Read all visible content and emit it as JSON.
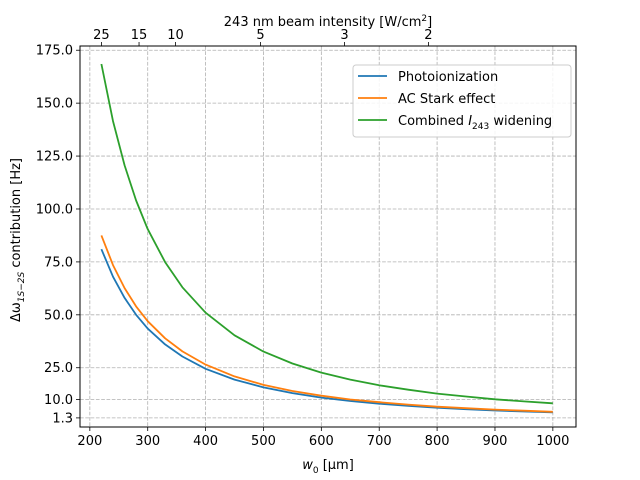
{
  "chart_data": {
    "type": "line",
    "x_label_prefix": "w",
    "x_label_sub": "0",
    "x_label_suffix": " [μm]",
    "y_label_prefix": "Δω",
    "y_label_sub": "1S−2S",
    "y_label_suffix": " contribution [Hz]",
    "top_label_prefix": "243 nm beam intensity [W/cm",
    "top_label_sup": "2",
    "top_label_suffix": "]",
    "x_ticks": [
      200,
      300,
      400,
      500,
      600,
      700,
      800,
      900,
      1000
    ],
    "y_ticks": [
      1.3,
      10.0,
      25.0,
      50.0,
      75.0,
      100.0,
      125.0,
      150.0,
      175.0
    ],
    "y_tick_labels": [
      "1.3",
      "10.0",
      "25.0",
      "50.0",
      "75.0",
      "100.0",
      "125.0",
      "150.0",
      "175.0"
    ],
    "top_ticks": [
      {
        "label": "25",
        "x": 220
      },
      {
        "label": "15",
        "x": 285
      },
      {
        "label": "10",
        "x": 348
      },
      {
        "label": "5",
        "x": 495
      },
      {
        "label": "3",
        "x": 640
      },
      {
        "label": "2",
        "x": 785
      }
    ],
    "xlim": [
      183,
      1040
    ],
    "ylim": [
      -3.0,
      177.0
    ],
    "grid": true,
    "legend_position": "top-right",
    "x": [
      220,
      240,
      260,
      280,
      300,
      330,
      360,
      400,
      450,
      500,
      550,
      600,
      650,
      700,
      750,
      800,
      850,
      900,
      950,
      1000
    ],
    "series": [
      {
        "name": "Photoionization",
        "color": "#1f77b4",
        "values": [
          81.0,
          68.0,
          58.0,
          50.0,
          43.5,
          36.0,
          30.3,
          24.5,
          19.4,
          15.7,
          13.0,
          10.9,
          9.3,
          8.0,
          7.0,
          6.1,
          5.4,
          4.8,
          4.3,
          3.9
        ]
      },
      {
        "name": "AC Stark effect",
        "color": "#ff7f0e",
        "values": [
          87.5,
          73.5,
          62.6,
          54.0,
          47.0,
          38.9,
          32.7,
          26.5,
          20.9,
          16.9,
          14.0,
          11.8,
          10.0,
          8.7,
          7.6,
          6.6,
          5.9,
          5.2,
          4.7,
          4.2
        ]
      },
      {
        "name_prefix": "Combined ",
        "name_italic": "I",
        "name_sub": "243",
        "name_suffix": " widening",
        "color": "#2ca02c",
        "values": [
          168.5,
          141.5,
          120.6,
          104.0,
          90.5,
          74.9,
          63.0,
          51.0,
          40.3,
          32.6,
          27.0,
          22.7,
          19.4,
          16.7,
          14.6,
          12.8,
          11.4,
          10.1,
          9.1,
          8.2
        ]
      }
    ]
  }
}
